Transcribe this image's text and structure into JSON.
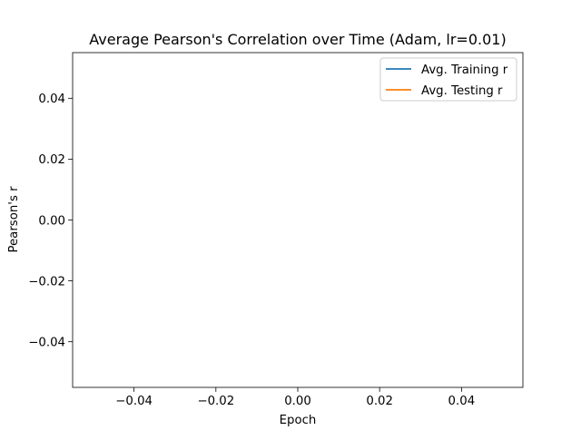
{
  "chart_data": {
    "type": "line",
    "title": "Average Pearson's Correlation over Time (Adam, lr=0.01)",
    "xlabel": "Epoch",
    "ylabel": "Pearson's r",
    "xlim": [
      -0.055,
      0.055
    ],
    "ylim": [
      -0.055,
      0.055
    ],
    "xticks": [
      -0.04,
      -0.02,
      0.0,
      0.02,
      0.04
    ],
    "xtick_labels": [
      "−0.04",
      "−0.02",
      "0.00",
      "0.02",
      "0.04"
    ],
    "yticks": [
      -0.04,
      -0.02,
      0.0,
      0.02,
      0.04
    ],
    "ytick_labels": [
      "−0.04",
      "−0.02",
      "0.00",
      "0.02",
      "0.04"
    ],
    "grid": false,
    "legend_position": "top-right",
    "series": [
      {
        "name": "Avg. Training r",
        "color": "#1f77b4",
        "x": [],
        "y": []
      },
      {
        "name": "Avg. Testing r",
        "color": "#ff7f0e",
        "x": [],
        "y": []
      }
    ]
  }
}
